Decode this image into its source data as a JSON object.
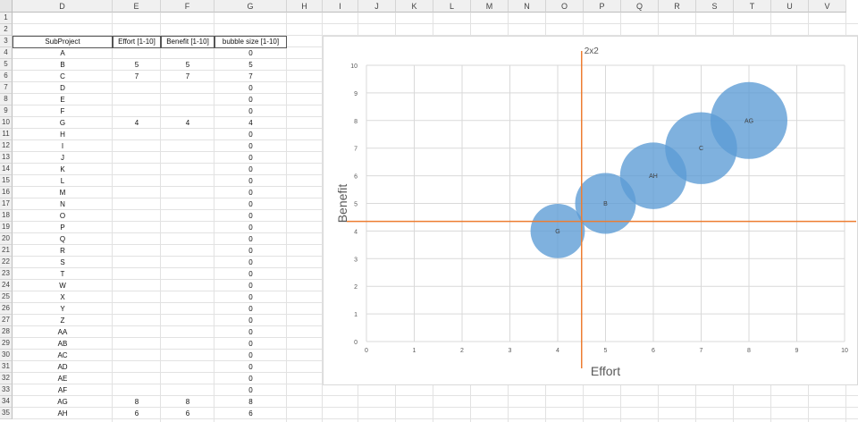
{
  "columns": [
    "D",
    "E",
    "F",
    "G",
    "H",
    "I",
    "J",
    "K",
    "L",
    "M",
    "N",
    "O",
    "P",
    "Q",
    "R",
    "S",
    "T",
    "U",
    "V"
  ],
  "rows": [
    "1",
    "2",
    "3",
    "4",
    "5",
    "6",
    "7",
    "8",
    "9",
    "10",
    "11",
    "12",
    "13",
    "14",
    "15",
    "16",
    "17",
    "18",
    "19",
    "20",
    "21",
    "22",
    "23",
    "24",
    "25",
    "26",
    "27",
    "28",
    "29",
    "30",
    "31",
    "32",
    "33",
    "34",
    "35"
  ],
  "table": {
    "headers": [
      "SubProject",
      "Effort [1-10]",
      "Benefit [1-10]",
      "bubble size [1-10]"
    ],
    "rows": [
      [
        "A",
        "",
        "",
        "0"
      ],
      [
        "B",
        "5",
        "5",
        "5"
      ],
      [
        "C",
        "7",
        "7",
        "7"
      ],
      [
        "D",
        "",
        "",
        "0"
      ],
      [
        "E",
        "",
        "",
        "0"
      ],
      [
        "F",
        "",
        "",
        "0"
      ],
      [
        "G",
        "4",
        "4",
        "4"
      ],
      [
        "H",
        "",
        "",
        "0"
      ],
      [
        "I",
        "",
        "",
        "0"
      ],
      [
        "J",
        "",
        "",
        "0"
      ],
      [
        "K",
        "",
        "",
        "0"
      ],
      [
        "L",
        "",
        "",
        "0"
      ],
      [
        "M",
        "",
        "",
        "0"
      ],
      [
        "N",
        "",
        "",
        "0"
      ],
      [
        "O",
        "",
        "",
        "0"
      ],
      [
        "P",
        "",
        "",
        "0"
      ],
      [
        "Q",
        "",
        "",
        "0"
      ],
      [
        "R",
        "",
        "",
        "0"
      ],
      [
        "S",
        "",
        "",
        "0"
      ],
      [
        "T",
        "",
        "",
        "0"
      ],
      [
        "W",
        "",
        "",
        "0"
      ],
      [
        "X",
        "",
        "",
        "0"
      ],
      [
        "Y",
        "",
        "",
        "0"
      ],
      [
        "Z",
        "",
        "",
        "0"
      ],
      [
        "AA",
        "",
        "",
        "0"
      ],
      [
        "AB",
        "",
        "",
        "0"
      ],
      [
        "AC",
        "",
        "",
        "0"
      ],
      [
        "AD",
        "",
        "",
        "0"
      ],
      [
        "AE",
        "",
        "",
        "0"
      ],
      [
        "AF",
        "",
        "",
        "0"
      ],
      [
        "AG",
        "8",
        "8",
        "8"
      ],
      [
        "AH",
        "6",
        "6",
        "6"
      ]
    ]
  },
  "colors": {
    "bubble": "#5b9bd5",
    "divider": "#ed7d31",
    "grid": "#d9d9d9"
  },
  "chart_data": {
    "type": "scatter",
    "subtype": "bubble",
    "title": "",
    "xlabel": "Effort",
    "ylabel": "Benefit",
    "xlim": [
      0,
      10
    ],
    "ylim": [
      0,
      10
    ],
    "xticks": [
      "0",
      "1",
      "2",
      "3",
      "4",
      "5",
      "6",
      "7",
      "8",
      "9",
      "10"
    ],
    "yticks": [
      "0",
      "1",
      "2",
      "3",
      "4",
      "5",
      "6",
      "7",
      "8",
      "9",
      "10"
    ],
    "grid": true,
    "points": [
      {
        "label": "G",
        "x": 4,
        "y": 4,
        "size": 4
      },
      {
        "label": "B",
        "x": 5,
        "y": 5,
        "size": 5
      },
      {
        "label": "AH",
        "x": 6,
        "y": 6,
        "size": 6
      },
      {
        "label": "C",
        "x": 7,
        "y": 7,
        "size": 7
      },
      {
        "label": "AG",
        "x": 8,
        "y": 8,
        "size": 8
      }
    ],
    "divider": {
      "label": "2x2",
      "x": 4.5,
      "y": 4.35
    }
  }
}
